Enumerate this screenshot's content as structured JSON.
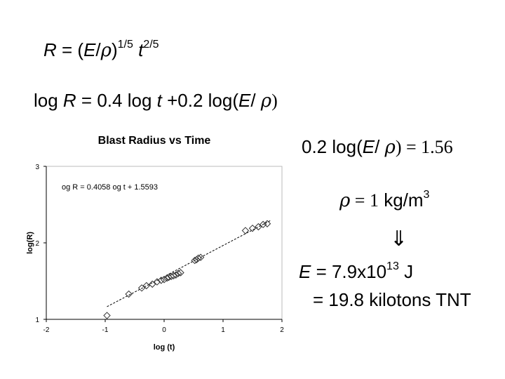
{
  "equations": {
    "eq1": {
      "R": "R",
      "mid1": " = (",
      "E": "E",
      "slash": "/",
      "rho": "ρ",
      "close": ")",
      "exp1": "1/5",
      "t": " t",
      "exp2": "2/5"
    },
    "eq2": {
      "pre": "log ",
      "R": "R",
      "mid": " = 0.4 log ",
      "t": "t",
      "mid2": " +0.2 log(",
      "E": "E",
      "slash": "/ ",
      "rho": "ρ",
      "close": ")"
    },
    "eq3": {
      "pre": "0.2 log(",
      "E": "E",
      "slash": "/ ",
      "rho": "ρ",
      "close": ") ",
      "eq": "= 1.56"
    },
    "eq4": {
      "rho": "ρ",
      "eq": " = 1",
      "unit": " kg/m",
      "exp": "3"
    },
    "arrow": "⇓",
    "eq5": {
      "E": "E",
      "mid": " = 7.9x10",
      "exp": "13",
      "unit": " J"
    },
    "eq6": "= 19.8 kilotons TNT"
  },
  "chart_data": {
    "type": "scatter",
    "title": "Blast Radius vs Time",
    "xlabel": "log (t)",
    "ylabel": "log(R)",
    "xlim": [
      -2,
      2
    ],
    "ylim": [
      1,
      3
    ],
    "xticks": [
      "-2",
      "-1",
      "0",
      "1",
      "2"
    ],
    "yticks": [
      "1",
      "2",
      "3"
    ],
    "annotation": "og R = 0.4058  og t + 1.5593",
    "fit": {
      "slope": 0.4058,
      "intercept": 1.5593
    },
    "grid": false,
    "points": [
      [
        -0.97,
        1.05
      ],
      [
        -0.6,
        1.33
      ],
      [
        -0.38,
        1.41
      ],
      [
        -0.3,
        1.44
      ],
      [
        -0.2,
        1.46
      ],
      [
        -0.12,
        1.49
      ],
      [
        -0.05,
        1.51
      ],
      [
        0.0,
        1.52
      ],
      [
        0.05,
        1.54
      ],
      [
        0.08,
        1.55
      ],
      [
        0.12,
        1.56
      ],
      [
        0.16,
        1.57
      ],
      [
        0.2,
        1.58
      ],
      [
        0.24,
        1.6
      ],
      [
        0.28,
        1.61
      ],
      [
        0.52,
        1.77
      ],
      [
        0.55,
        1.78
      ],
      [
        0.58,
        1.8
      ],
      [
        0.62,
        1.81
      ],
      [
        1.38,
        2.16
      ],
      [
        1.5,
        2.19
      ],
      [
        1.6,
        2.21
      ],
      [
        1.68,
        2.24
      ],
      [
        1.75,
        2.25
      ]
    ]
  }
}
